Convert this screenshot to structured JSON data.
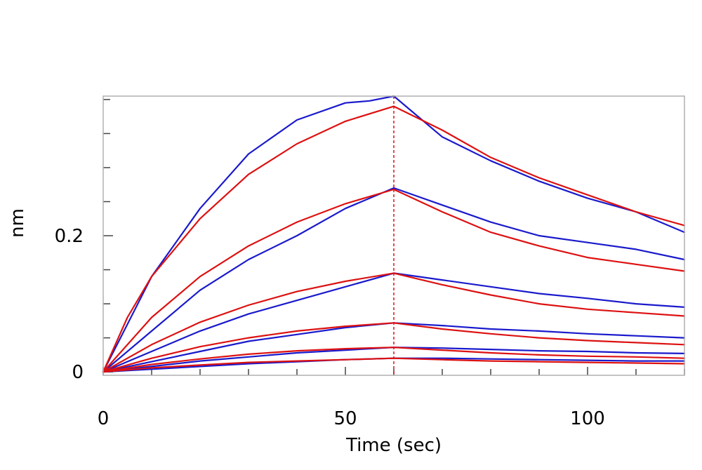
{
  "chart_data": {
    "type": "line",
    "xlabel": "Time (sec)",
    "ylabel": "nm",
    "xlim": [
      0,
      120
    ],
    "ylim": [
      -0.005,
      0.405
    ],
    "x_ticks": [
      0,
      50,
      100
    ],
    "x_tick_labels": [
      "0",
      "50",
      "100"
    ],
    "y_ticks": [
      0,
      0.2
    ],
    "y_tick_labels": [
      "0",
      "0.2"
    ],
    "x_minor_step": 10,
    "y_minor_step": 0.05,
    "grid": false,
    "legend": "none",
    "dissociation_start": 60,
    "colors": {
      "measured": "#1a1acc",
      "fit": "#dd1111",
      "marker_line": "#dd1111",
      "frame": "#b0b0b0"
    },
    "series": [
      {
        "kind": "measured",
        "points": [
          [
            0,
            0
          ],
          [
            5,
            0.07
          ],
          [
            10,
            0.14
          ],
          [
            20,
            0.24
          ],
          [
            30,
            0.32
          ],
          [
            40,
            0.37
          ],
          [
            50,
            0.395
          ],
          [
            55,
            0.398
          ],
          [
            60,
            0.405
          ],
          [
            65,
            0.375
          ],
          [
            70,
            0.345
          ],
          [
            80,
            0.31
          ],
          [
            90,
            0.28
          ],
          [
            100,
            0.255
          ],
          [
            110,
            0.235
          ],
          [
            120,
            0.205
          ]
        ]
      },
      {
        "kind": "fit",
        "points": [
          [
            0,
            0
          ],
          [
            5,
            0.08
          ],
          [
            10,
            0.14
          ],
          [
            20,
            0.225
          ],
          [
            30,
            0.29
          ],
          [
            40,
            0.335
          ],
          [
            50,
            0.368
          ],
          [
            60,
            0.39
          ],
          [
            70,
            0.355
          ],
          [
            80,
            0.315
          ],
          [
            90,
            0.285
          ],
          [
            100,
            0.26
          ],
          [
            110,
            0.235
          ],
          [
            120,
            0.215
          ]
        ]
      },
      {
        "kind": "measured",
        "points": [
          [
            0,
            0
          ],
          [
            10,
            0.06
          ],
          [
            20,
            0.12
          ],
          [
            30,
            0.165
          ],
          [
            40,
            0.2
          ],
          [
            50,
            0.24
          ],
          [
            60,
            0.27
          ],
          [
            70,
            0.245
          ],
          [
            80,
            0.22
          ],
          [
            90,
            0.2
          ],
          [
            100,
            0.19
          ],
          [
            110,
            0.18
          ],
          [
            120,
            0.165
          ]
        ]
      },
      {
        "kind": "fit",
        "points": [
          [
            0,
            0
          ],
          [
            10,
            0.08
          ],
          [
            20,
            0.14
          ],
          [
            30,
            0.185
          ],
          [
            40,
            0.22
          ],
          [
            50,
            0.247
          ],
          [
            60,
            0.268
          ],
          [
            70,
            0.235
          ],
          [
            80,
            0.205
          ],
          [
            90,
            0.185
          ],
          [
            100,
            0.168
          ],
          [
            110,
            0.158
          ],
          [
            120,
            0.148
          ]
        ]
      },
      {
        "kind": "measured",
        "points": [
          [
            0,
            0
          ],
          [
            10,
            0.03
          ],
          [
            20,
            0.06
          ],
          [
            30,
            0.085
          ],
          [
            40,
            0.105
          ],
          [
            50,
            0.125
          ],
          [
            60,
            0.145
          ],
          [
            70,
            0.135
          ],
          [
            80,
            0.125
          ],
          [
            90,
            0.115
          ],
          [
            100,
            0.108
          ],
          [
            110,
            0.1
          ],
          [
            120,
            0.095
          ]
        ]
      },
      {
        "kind": "fit",
        "points": [
          [
            0,
            0
          ],
          [
            10,
            0.04
          ],
          [
            20,
            0.073
          ],
          [
            30,
            0.098
          ],
          [
            40,
            0.118
          ],
          [
            50,
            0.133
          ],
          [
            60,
            0.145
          ],
          [
            70,
            0.128
          ],
          [
            80,
            0.113
          ],
          [
            90,
            0.1
          ],
          [
            100,
            0.092
          ],
          [
            110,
            0.087
          ],
          [
            120,
            0.082
          ]
        ]
      },
      {
        "kind": "measured",
        "points": [
          [
            0,
            0
          ],
          [
            10,
            0.015
          ],
          [
            20,
            0.03
          ],
          [
            30,
            0.045
          ],
          [
            40,
            0.055
          ],
          [
            50,
            0.065
          ],
          [
            60,
            0.072
          ],
          [
            70,
            0.068
          ],
          [
            80,
            0.063
          ],
          [
            90,
            0.06
          ],
          [
            100,
            0.056
          ],
          [
            110,
            0.053
          ],
          [
            120,
            0.05
          ]
        ]
      },
      {
        "kind": "fit",
        "points": [
          [
            0,
            0
          ],
          [
            10,
            0.02
          ],
          [
            20,
            0.037
          ],
          [
            30,
            0.05
          ],
          [
            40,
            0.06
          ],
          [
            50,
            0.067
          ],
          [
            60,
            0.072
          ],
          [
            70,
            0.063
          ],
          [
            80,
            0.056
          ],
          [
            90,
            0.05
          ],
          [
            100,
            0.046
          ],
          [
            110,
            0.043
          ],
          [
            120,
            0.04
          ]
        ]
      },
      {
        "kind": "measured",
        "points": [
          [
            0,
            0
          ],
          [
            10,
            0.008
          ],
          [
            20,
            0.016
          ],
          [
            30,
            0.022
          ],
          [
            40,
            0.028
          ],
          [
            50,
            0.032
          ],
          [
            60,
            0.036
          ],
          [
            70,
            0.035
          ],
          [
            80,
            0.033
          ],
          [
            90,
            0.031
          ],
          [
            100,
            0.03
          ],
          [
            110,
            0.028
          ],
          [
            120,
            0.027
          ]
        ]
      },
      {
        "kind": "fit",
        "points": [
          [
            0,
            0
          ],
          [
            10,
            0.011
          ],
          [
            20,
            0.019
          ],
          [
            30,
            0.026
          ],
          [
            40,
            0.031
          ],
          [
            50,
            0.034
          ],
          [
            60,
            0.036
          ],
          [
            70,
            0.032
          ],
          [
            80,
            0.028
          ],
          [
            90,
            0.025
          ],
          [
            100,
            0.023
          ],
          [
            110,
            0.022
          ],
          [
            120,
            0.02
          ]
        ]
      },
      {
        "kind": "measured",
        "points": [
          [
            0,
            0
          ],
          [
            10,
            0.004
          ],
          [
            20,
            0.008
          ],
          [
            30,
            0.012
          ],
          [
            40,
            0.015
          ],
          [
            50,
            0.018
          ],
          [
            60,
            0.02
          ],
          [
            70,
            0.02
          ],
          [
            80,
            0.019
          ],
          [
            90,
            0.018
          ],
          [
            100,
            0.017
          ],
          [
            110,
            0.016
          ],
          [
            120,
            0.016
          ]
        ]
      },
      {
        "kind": "fit",
        "points": [
          [
            0,
            0
          ],
          [
            10,
            0.006
          ],
          [
            20,
            0.01
          ],
          [
            30,
            0.014
          ],
          [
            40,
            0.016
          ],
          [
            50,
            0.018
          ],
          [
            60,
            0.02
          ],
          [
            70,
            0.018
          ],
          [
            80,
            0.016
          ],
          [
            90,
            0.015
          ],
          [
            100,
            0.014
          ],
          [
            110,
            0.013
          ],
          [
            120,
            0.012
          ]
        ]
      }
    ]
  }
}
